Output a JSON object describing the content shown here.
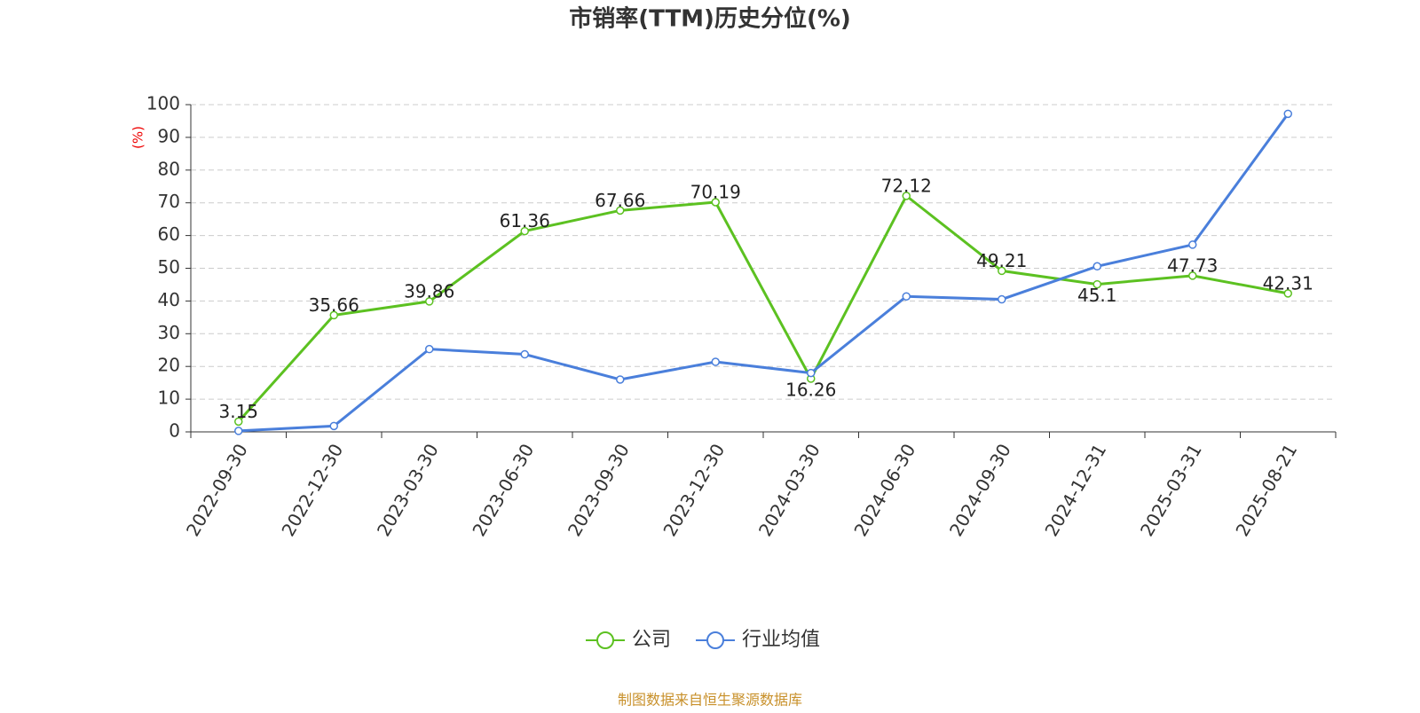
{
  "chart_data": {
    "type": "line",
    "title": "市销率(TTM)历史分位(%)",
    "y_label": "(%)",
    "categories": [
      "2022-09-30",
      "2022-12-30",
      "2023-03-30",
      "2023-06-30",
      "2023-09-30",
      "2023-12-30",
      "2024-03-30",
      "2024-06-30",
      "2024-09-30",
      "2024-12-31",
      "2025-03-31",
      "2025-08-21"
    ],
    "series": [
      {
        "name": "公司",
        "color": "#5cc121",
        "show_labels": true,
        "values": [
          3.15,
          35.66,
          39.86,
          61.36,
          67.66,
          70.19,
          16.26,
          72.12,
          49.21,
          45.1,
          47.73,
          42.31
        ]
      },
      {
        "name": "行业均值",
        "color": "#4a7fdb",
        "show_labels": false,
        "values": [
          0.3,
          1.8,
          25.3,
          23.7,
          16.0,
          21.4,
          18.0,
          41.4,
          40.5,
          50.6,
          57.2,
          97.2
        ]
      }
    ],
    "ylim": [
      0,
      100
    ],
    "yticks": [
      0,
      10,
      20,
      30,
      40,
      50,
      60,
      70,
      80,
      90,
      100
    ],
    "grid": true,
    "legend": "bottom",
    "source": "制图数据来自恒生聚源数据库"
  }
}
